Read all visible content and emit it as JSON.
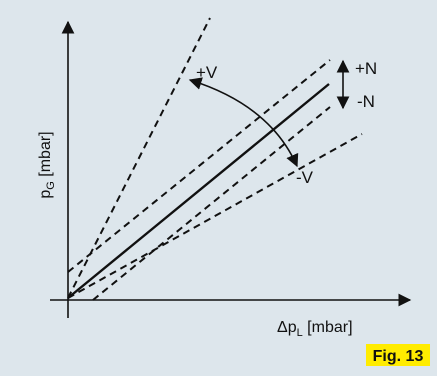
{
  "colors": {
    "background": "#dde6ec",
    "line": "#111111",
    "badge": "#ffec00"
  },
  "diagram": {
    "y_axis_label": {
      "main": "p",
      "sub": "G",
      "unit": " [mbar]"
    },
    "x_axis_label": {
      "prefix": "Δp",
      "sub": "L",
      "unit": " [mbar]"
    },
    "labels": {
      "plus_v": "+V",
      "minus_v": "-V",
      "plus_n": "+N",
      "minus_n": "-N"
    },
    "badge": "Fig. 13"
  }
}
